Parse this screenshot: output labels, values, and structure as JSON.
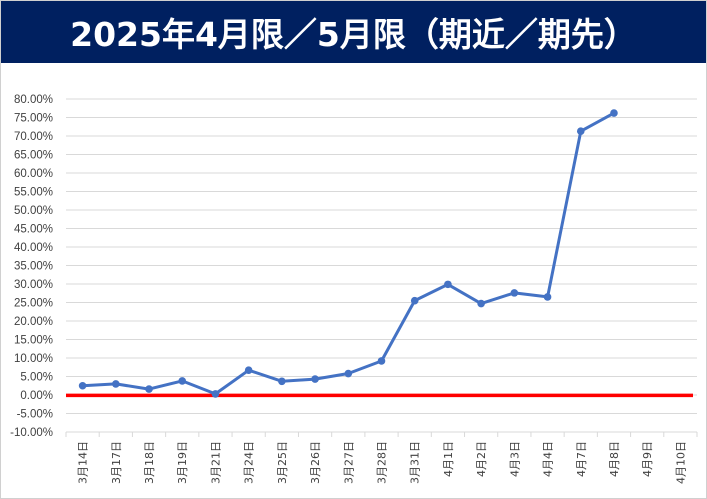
{
  "title": "2025年4月限／5月限（期近／期先）",
  "colors": {
    "title_background": "#002060",
    "title_text": "#ffffff",
    "series_line": "#4472C4",
    "zero_line": "#FF0000",
    "grid": "#D9D9D9"
  },
  "chart_data": {
    "type": "line",
    "title": "2025年4月限／5月限（期近／期先）",
    "xlabel": "",
    "ylabel": "",
    "categories": [
      "3月14日",
      "3月17日",
      "3月18日",
      "3月19日",
      "3月21日",
      "3月24日",
      "3月25日",
      "3月26日",
      "3月27日",
      "3月28日",
      "3月31日",
      "4月1日",
      "4月2日",
      "4月3日",
      "4月4日",
      "4月7日",
      "4月8日",
      "4月9日",
      "4月10日"
    ],
    "series": [
      {
        "values": [
          2.5,
          3.0,
          1.6,
          3.8,
          0.3,
          6.7,
          3.7,
          4.3,
          5.8,
          9.2,
          25.5,
          29.9,
          24.7,
          27.6,
          26.5,
          71.3,
          76.2,
          null,
          null
        ]
      }
    ],
    "reference_line_y": -0.1,
    "ylim": [
      -10,
      80
    ],
    "y_ticks": [
      "80.00%",
      "75.00%",
      "70.00%",
      "65.00%",
      "60.00%",
      "55.00%",
      "50.00%",
      "45.00%",
      "40.00%",
      "35.00%",
      "30.00%",
      "25.00%",
      "20.00%",
      "15.00%",
      "10.00%",
      "5.00%",
      "0.00%",
      "-5.00%",
      "-10.00%"
    ],
    "grid": true,
    "legend": "none"
  }
}
